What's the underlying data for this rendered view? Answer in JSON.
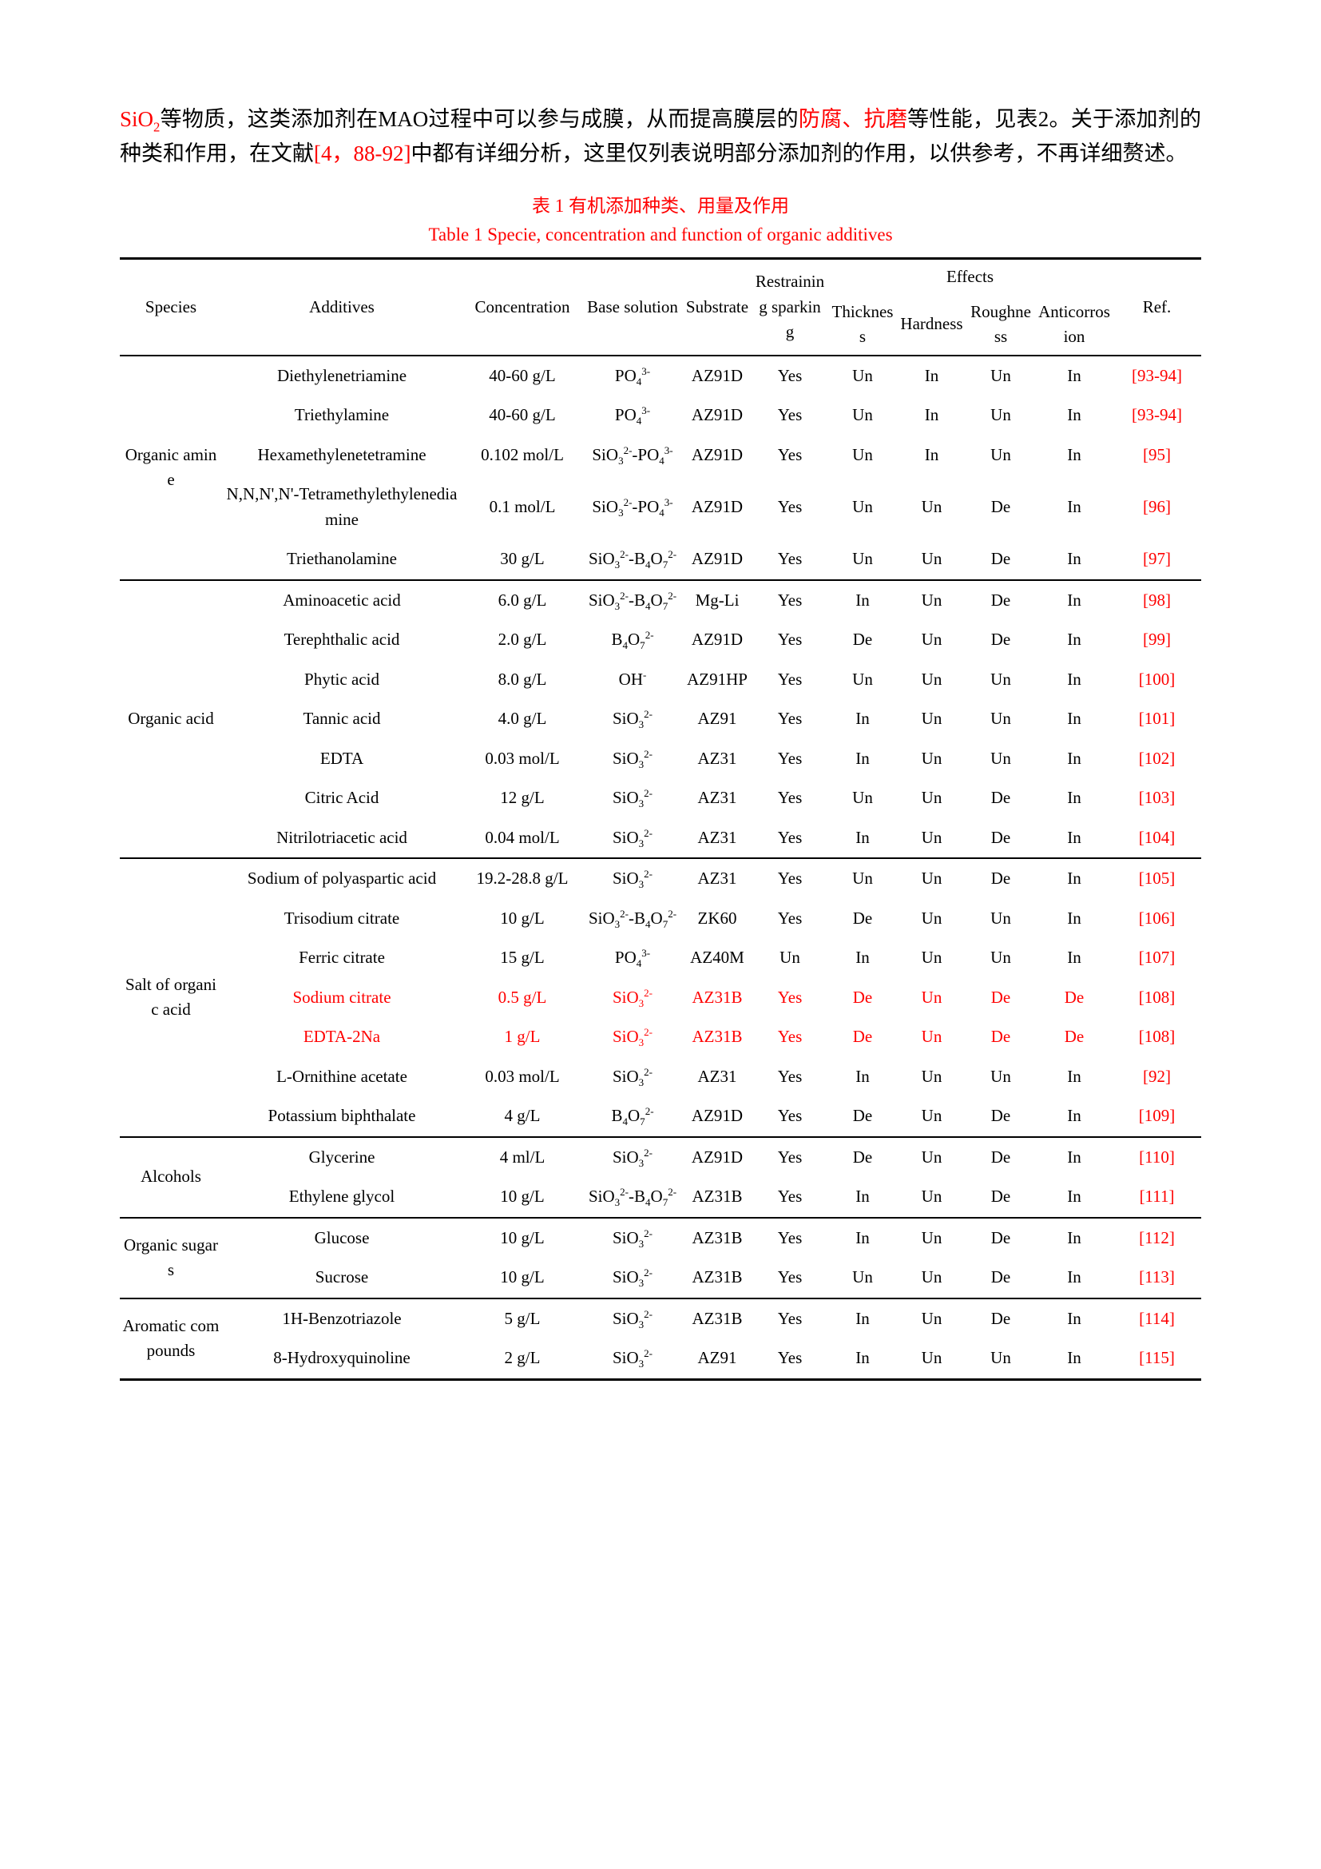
{
  "colors": {
    "accent_red": "#ff0000",
    "text": "#000000",
    "background": "#ffffff"
  },
  "intro": {
    "segments": [
      {
        "text": "SiO_2_",
        "color": "red"
      },
      {
        "text": "等物质，这类添加剂在MAO过程中可以参与成膜，从而提高膜层的",
        "color": "black"
      },
      {
        "text": "防腐、抗磨",
        "color": "red"
      },
      {
        "text": "等性能，见表2。关于添加剂的种类和作用，在文献",
        "color": "black"
      },
      {
        "text": "[4，88-92]",
        "color": "red"
      },
      {
        "text": "中都有详细分析，这里仅列表说明部分添加剂的作用，以供参考，不再详细赘述。",
        "color": "black"
      }
    ]
  },
  "captions": {
    "zh": "表 1 有机添加种类、用量及作用",
    "en": "Table 1 Specie, concentration and function of organic additives"
  },
  "table": {
    "headers": {
      "species": "Species",
      "additives": "Additives",
      "concentration": "Concentration",
      "base_solution": "Base solution",
      "substrate": "Substrate",
      "restraining_sparking": "Restraining sparking",
      "effects": "Effects",
      "thickness": "Thickness",
      "hardness": "Hardness",
      "roughness": "Roughness",
      "anticorrosion": "Anticorrosion",
      "ref": "Ref."
    },
    "groups": [
      {
        "species": "Organic amine",
        "rows": [
          {
            "additive": "Diethylenetriamine",
            "concentration": "40-60 g/L",
            "base_solution": "PO_4_^3-^",
            "substrate": "AZ91D",
            "restraining_sparking": "Yes",
            "thickness": "Un",
            "hardness": "In",
            "roughness": "Un",
            "anticorrosion": "In",
            "ref": "[93-94]"
          },
          {
            "additive": "Triethylamine",
            "concentration": "40-60 g/L",
            "base_solution": "PO_4_^3-^",
            "substrate": "AZ91D",
            "restraining_sparking": "Yes",
            "thickness": "Un",
            "hardness": "In",
            "roughness": "Un",
            "anticorrosion": "In",
            "ref": "[93-94]"
          },
          {
            "additive": "Hexamethylenetetramine",
            "concentration": "0.102 mol/L",
            "base_solution": "SiO_3_^2-^-PO_4_^3-^",
            "substrate": "AZ91D",
            "restraining_sparking": "Yes",
            "thickness": "Un",
            "hardness": "In",
            "roughness": "Un",
            "anticorrosion": "In",
            "ref": "[95]"
          },
          {
            "additive": "N,N,N',N'-Tetramethylethylenediamine",
            "concentration": "0.1 mol/L",
            "base_solution": "SiO_3_^2-^-PO_4_^3-^",
            "substrate": "AZ91D",
            "restraining_sparking": "Yes",
            "thickness": "Un",
            "hardness": "Un",
            "roughness": "De",
            "anticorrosion": "In",
            "ref": "[96]"
          },
          {
            "additive": "Triethanolamine",
            "concentration": "30 g/L",
            "base_solution": "SiO_3_^2-^-B_4_O_7_^2-^",
            "substrate": "AZ91D",
            "restraining_sparking": "Yes",
            "thickness": "Un",
            "hardness": "Un",
            "roughness": "De",
            "anticorrosion": "In",
            "ref": "[97]"
          }
        ]
      },
      {
        "species": "Organic acid",
        "rows": [
          {
            "additive": "Aminoacetic acid",
            "concentration": "6.0 g/L",
            "base_solution": "SiO_3_^2-^-B_4_O_7_^2-^",
            "substrate": "Mg-Li",
            "restraining_sparking": "Yes",
            "thickness": "In",
            "hardness": "Un",
            "roughness": "De",
            "anticorrosion": "In",
            "ref": "[98]"
          },
          {
            "additive": "Terephthalic acid",
            "concentration": "2.0 g/L",
            "base_solution": "B_4_O_7_^2-^",
            "substrate": "AZ91D",
            "restraining_sparking": "Yes",
            "thickness": "De",
            "hardness": "Un",
            "roughness": "De",
            "anticorrosion": "In",
            "ref": "[99]"
          },
          {
            "additive": "Phytic acid",
            "concentration": "8.0 g/L",
            "base_solution": "OH^-^",
            "substrate": "AZ91HP",
            "restraining_sparking": "Yes",
            "thickness": "Un",
            "hardness": "Un",
            "roughness": "Un",
            "anticorrosion": "In",
            "ref": "[100]"
          },
          {
            "additive": "Tannic acid",
            "concentration": "4.0 g/L",
            "base_solution": "SiO_3_^2-^",
            "substrate": "AZ91",
            "restraining_sparking": "Yes",
            "thickness": "In",
            "hardness": "Un",
            "roughness": "Un",
            "anticorrosion": "In",
            "ref": "[101]"
          },
          {
            "additive": "EDTA",
            "concentration": "0.03 mol/L",
            "base_solution": "SiO_3_^2-^",
            "substrate": "AZ31",
            "restraining_sparking": "Yes",
            "thickness": "In",
            "hardness": "Un",
            "roughness": "Un",
            "anticorrosion": "In",
            "ref": "[102]"
          },
          {
            "additive": "Citric Acid",
            "concentration": "12 g/L",
            "base_solution": "SiO_3_^2-^",
            "substrate": "AZ31",
            "restraining_sparking": "Yes",
            "thickness": "Un",
            "hardness": "Un",
            "roughness": "De",
            "anticorrosion": "In",
            "ref": "[103]"
          },
          {
            "additive": "Nitrilotriacetic acid",
            "concentration": "0.04 mol/L",
            "base_solution": "SiO_3_^2-^",
            "substrate": "AZ31",
            "restraining_sparking": "Yes",
            "thickness": "In",
            "hardness": "Un",
            "roughness": "De",
            "anticorrosion": "In",
            "ref": "[104]"
          }
        ]
      },
      {
        "species": "Salt of organic acid",
        "rows": [
          {
            "additive": "Sodium of polyaspartic acid",
            "concentration": "19.2-28.8 g/L",
            "base_solution": "SiO_3_^2-^",
            "substrate": "AZ31",
            "restraining_sparking": "Yes",
            "thickness": "Un",
            "hardness": "Un",
            "roughness": "De",
            "anticorrosion": "In",
            "ref": "[105]"
          },
          {
            "additive": "Trisodium citrate",
            "concentration": "10 g/L",
            "base_solution": "SiO_3_^2-^-B_4_O_7_^2-^",
            "substrate": "ZK60",
            "restraining_sparking": "Yes",
            "thickness": "De",
            "hardness": "Un",
            "roughness": "Un",
            "anticorrosion": "In",
            "ref": "[106]"
          },
          {
            "additive": "Ferric citrate",
            "concentration": "15 g/L",
            "base_solution": "PO_4_^3-^",
            "substrate": "AZ40M",
            "restraining_sparking": "Un",
            "thickness": "In",
            "hardness": "Un",
            "roughness": "Un",
            "anticorrosion": "In",
            "ref": "[107]"
          },
          {
            "additive": "Sodium citrate",
            "concentration": "0.5 g/L",
            "base_solution": "SiO_3_^2-^",
            "substrate": "AZ31B",
            "restraining_sparking": "Yes",
            "thickness": "De",
            "hardness": "Un",
            "roughness": "De",
            "anticorrosion": "De",
            "ref": "[108]",
            "highlight": true
          },
          {
            "additive": "EDTA-2Na",
            "concentration": "1 g/L",
            "base_solution": "SiO_3_^2-^",
            "substrate": "AZ31B",
            "restraining_sparking": "Yes",
            "thickness": "De",
            "hardness": "Un",
            "roughness": "De",
            "anticorrosion": "De",
            "ref": "[108]",
            "highlight": true
          },
          {
            "additive": "L-Ornithine acetate",
            "concentration": "0.03 mol/L",
            "base_solution": "SiO_3_^2-^",
            "substrate": "AZ31",
            "restraining_sparking": "Yes",
            "thickness": "In",
            "hardness": "Un",
            "roughness": "Un",
            "anticorrosion": "In",
            "ref": "[92]"
          },
          {
            "additive": "Potassium biphthalate",
            "concentration": "4 g/L",
            "base_solution": "B_4_O_7_^2-^",
            "substrate": "AZ91D",
            "restraining_sparking": "Yes",
            "thickness": "De",
            "hardness": "Un",
            "roughness": "De",
            "anticorrosion": "In",
            "ref": "[109]"
          }
        ]
      },
      {
        "species": "Alcohols",
        "rows": [
          {
            "additive": "Glycerine",
            "concentration": "4 ml/L",
            "base_solution": "SiO_3_^2-^",
            "substrate": "AZ91D",
            "restraining_sparking": "Yes",
            "thickness": "De",
            "hardness": "Un",
            "roughness": "De",
            "anticorrosion": "In",
            "ref": "[110]"
          },
          {
            "additive": "Ethylene glycol",
            "concentration": "10 g/L",
            "base_solution": "SiO_3_^2-^-B_4_O_7_^2-^",
            "substrate": "AZ31B",
            "restraining_sparking": "Yes",
            "thickness": "In",
            "hardness": "Un",
            "roughness": "De",
            "anticorrosion": "In",
            "ref": "[111]"
          }
        ]
      },
      {
        "species": "Organic sugars",
        "rows": [
          {
            "additive": "Glucose",
            "concentration": "10 g/L",
            "base_solution": "SiO_3_^2-^",
            "substrate": "AZ31B",
            "restraining_sparking": "Yes",
            "thickness": "In",
            "hardness": "Un",
            "roughness": "De",
            "anticorrosion": "In",
            "ref": "[112]"
          },
          {
            "additive": "Sucrose",
            "concentration": "10 g/L",
            "base_solution": "SiO_3_^2-^",
            "substrate": "AZ31B",
            "restraining_sparking": "Yes",
            "thickness": "Un",
            "hardness": "Un",
            "roughness": "De",
            "anticorrosion": "In",
            "ref": "[113]"
          }
        ]
      },
      {
        "species": "Aromatic compounds",
        "rows": [
          {
            "additive": "1H-Benzotriazole",
            "concentration": "5 g/L",
            "base_solution": "SiO_3_^2-^",
            "substrate": "AZ31B",
            "restraining_sparking": "Yes",
            "thickness": "In",
            "hardness": "Un",
            "roughness": "De",
            "anticorrosion": "In",
            "ref": "[114]"
          },
          {
            "additive": "8-Hydroxyquinoline",
            "concentration": "2 g/L",
            "base_solution": "SiO_3_^2-^",
            "substrate": "AZ91",
            "restraining_sparking": "Yes",
            "thickness": "In",
            "hardness": "Un",
            "roughness": "Un",
            "anticorrosion": "In",
            "ref": "[115]"
          }
        ]
      }
    ]
  }
}
